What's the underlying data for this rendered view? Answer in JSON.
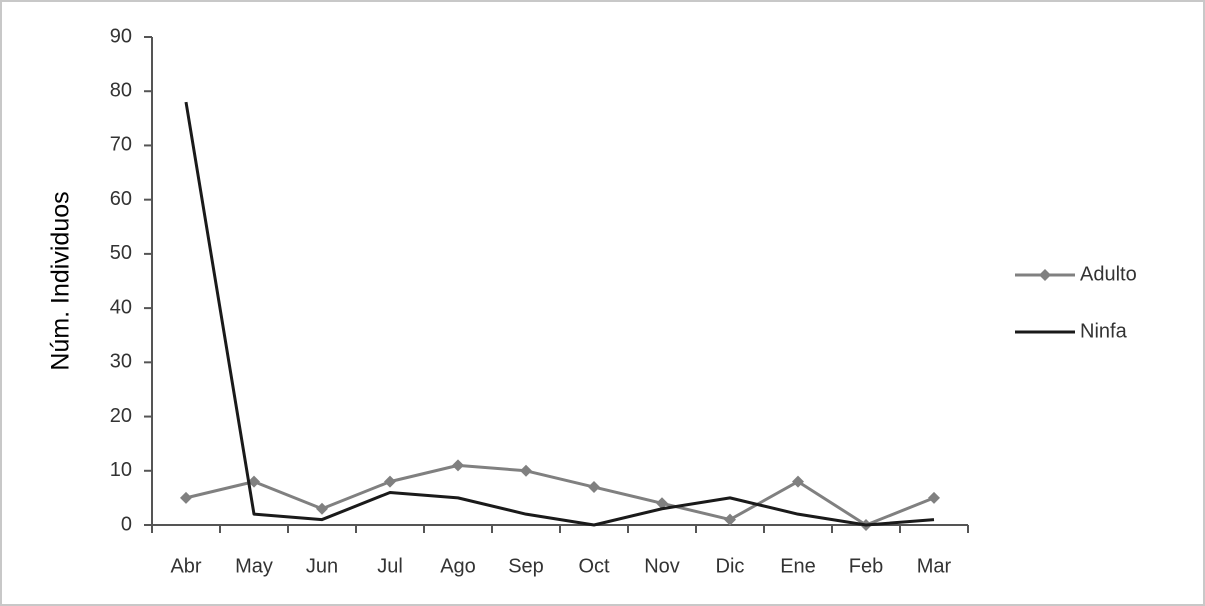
{
  "chart_data": {
    "type": "line",
    "y_label": "Núm. Individuos",
    "categories": [
      "Abr",
      "May",
      "Jun",
      "Jul",
      "Ago",
      "Sep",
      "Oct",
      "Nov",
      "Dic",
      "Ene",
      "Feb",
      "Mar"
    ],
    "series": [
      {
        "name": "Adulto",
        "color": "#808080",
        "marker": "diamond",
        "values": [
          5,
          8,
          3,
          8,
          11,
          10,
          7,
          4,
          1,
          8,
          0,
          5
        ]
      },
      {
        "name": "Ninfa",
        "color": "#1a1a1a",
        "marker": "none",
        "values": [
          78,
          2,
          1,
          6,
          5,
          2,
          0,
          3,
          5,
          2,
          0,
          1
        ]
      }
    ],
    "ylim": [
      0,
      90
    ],
    "yticks": [
      0,
      10,
      20,
      30,
      40,
      50,
      60,
      70,
      80,
      90
    ],
    "grid": false,
    "legend": "right"
  }
}
